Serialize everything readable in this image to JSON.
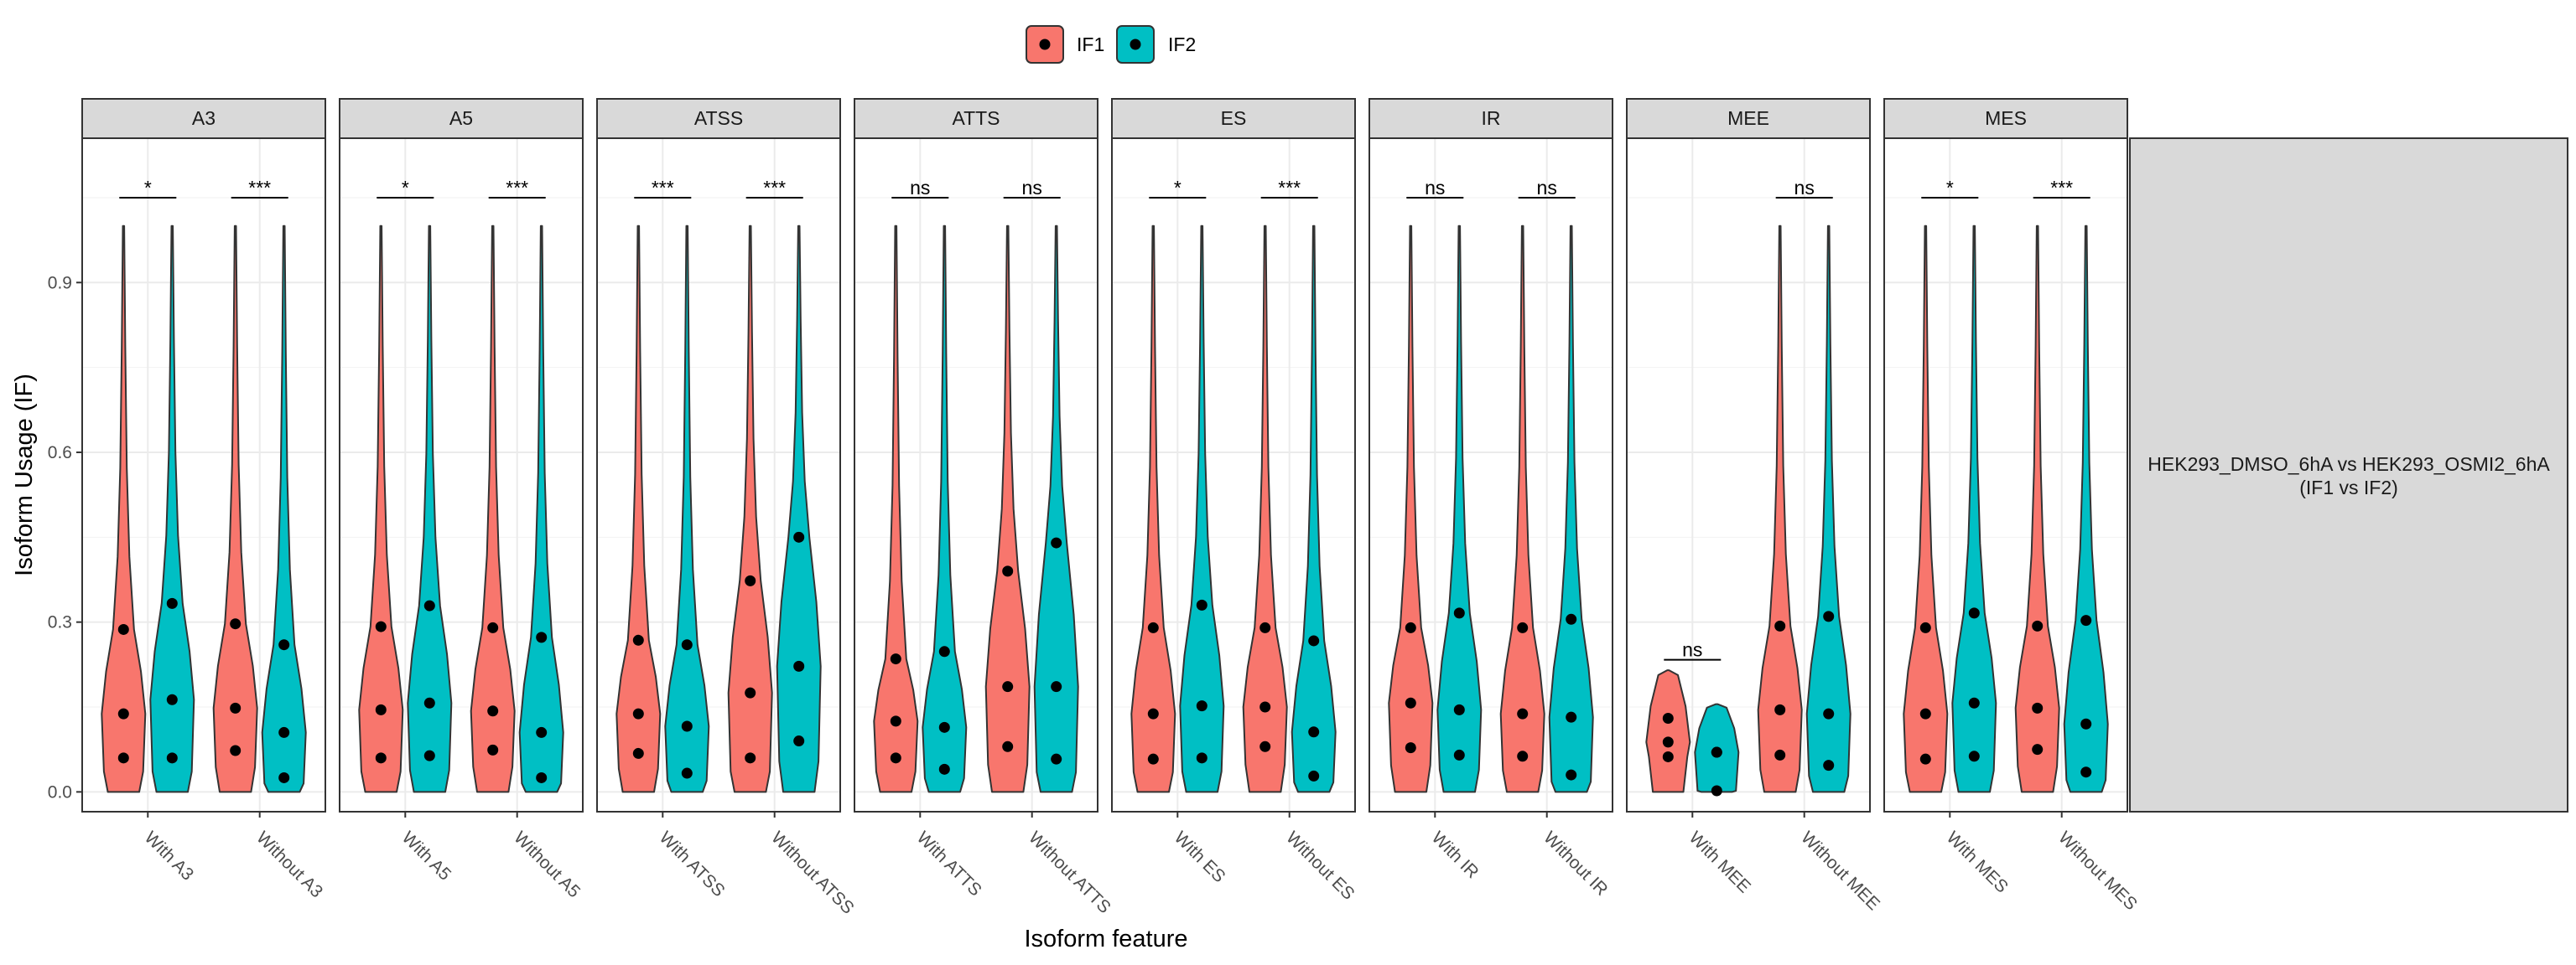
{
  "chart_data": {
    "type": "violin",
    "xlabel": "Isoform feature",
    "ylabel": "Isoform Usage (IF)",
    "ylim": [
      -0.035,
      1.155
    ],
    "yticks": [
      0.0,
      0.3,
      0.6,
      0.9
    ],
    "ytick_labels": [
      "0.0",
      "0.3",
      "0.6",
      "0.9"
    ],
    "grid": true,
    "legend": {
      "position": "top",
      "entries": [
        {
          "label": "IF1",
          "color": "#F8766D"
        },
        {
          "label": "IF2",
          "color": "#00BFC4"
        }
      ]
    },
    "side_strip": {
      "line1": "HEK293_DMSO_6hA vs HEK293_OSMI2_6hA",
      "line2": "(IF1 vs IF2)"
    },
    "facets": [
      {
        "name": "A3",
        "groups": [
          {
            "label": "With A3",
            "sig": "*",
            "if1": {
              "quantiles": [
                0.06,
                0.138,
                0.287
              ],
              "max": 1.0
            },
            "if2": {
              "quantiles": [
                0.06,
                0.163,
                0.333
              ],
              "max": 1.0
            }
          },
          {
            "label": "Without A3",
            "sig": "***",
            "if1": {
              "quantiles": [
                0.073,
                0.148,
                0.297
              ],
              "max": 1.0
            },
            "if2": {
              "quantiles": [
                0.025,
                0.105,
                0.26
              ],
              "max": 1.0
            }
          }
        ]
      },
      {
        "name": "A5",
        "groups": [
          {
            "label": "With A5",
            "sig": "*",
            "if1": {
              "quantiles": [
                0.06,
                0.145,
                0.292
              ],
              "max": 1.0
            },
            "if2": {
              "quantiles": [
                0.064,
                0.157,
                0.329
              ],
              "max": 1.0
            }
          },
          {
            "label": "Without A5",
            "sig": "***",
            "if1": {
              "quantiles": [
                0.074,
                0.143,
                0.29
              ],
              "max": 1.0
            },
            "if2": {
              "quantiles": [
                0.025,
                0.105,
                0.273
              ],
              "max": 1.0
            }
          }
        ]
      },
      {
        "name": "ATSS",
        "groups": [
          {
            "label": "With ATSS",
            "sig": "***",
            "if1": {
              "quantiles": [
                0.068,
                0.138,
                0.268
              ],
              "max": 1.0
            },
            "if2": {
              "quantiles": [
                0.033,
                0.116,
                0.26
              ],
              "max": 1.0
            }
          },
          {
            "label": "Without ATSS",
            "sig": "***",
            "if1": {
              "quantiles": [
                0.06,
                0.175,
                0.373
              ],
              "max": 1.0
            },
            "if2": {
              "quantiles": [
                0.09,
                0.222,
                0.45
              ],
              "max": 1.0
            }
          }
        ]
      },
      {
        "name": "ATTS",
        "groups": [
          {
            "label": "With ATTS",
            "sig": "ns",
            "if1": {
              "quantiles": [
                0.06,
                0.125,
                0.235
              ],
              "max": 1.0
            },
            "if2": {
              "quantiles": [
                0.04,
                0.114,
                0.248
              ],
              "max": 1.0
            }
          },
          {
            "label": "Without ATTS",
            "sig": "ns",
            "if1": {
              "quantiles": [
                0.08,
                0.186,
                0.39
              ],
              "max": 1.0
            },
            "if2": {
              "quantiles": [
                0.058,
                0.186,
                0.44
              ],
              "max": 1.0
            }
          }
        ]
      },
      {
        "name": "ES",
        "groups": [
          {
            "label": "With ES",
            "sig": "*",
            "if1": {
              "quantiles": [
                0.058,
                0.138,
                0.29
              ],
              "max": 1.0
            },
            "if2": {
              "quantiles": [
                0.06,
                0.152,
                0.33
              ],
              "max": 1.0
            }
          },
          {
            "label": "Without ES",
            "sig": "***",
            "if1": {
              "quantiles": [
                0.08,
                0.15,
                0.29
              ],
              "max": 1.0
            },
            "if2": {
              "quantiles": [
                0.028,
                0.106,
                0.267
              ],
              "max": 1.0
            }
          }
        ]
      },
      {
        "name": "IR",
        "groups": [
          {
            "label": "With IR",
            "sig": "ns",
            "if1": {
              "quantiles": [
                0.078,
                0.157,
                0.29
              ],
              "max": 1.0
            },
            "if2": {
              "quantiles": [
                0.065,
                0.145,
                0.316
              ],
              "max": 1.0
            }
          },
          {
            "label": "Without IR",
            "sig": "ns",
            "if1": {
              "quantiles": [
                0.063,
                0.138,
                0.29
              ],
              "max": 1.0
            },
            "if2": {
              "quantiles": [
                0.03,
                0.132,
                0.305
              ],
              "max": 1.0
            }
          }
        ]
      },
      {
        "name": "MEE",
        "groups": [
          {
            "label": "With MEE",
            "sig": "ns",
            "if1": {
              "quantiles": [
                0.062,
                0.088,
                0.13
              ],
              "max": 0.215
            },
            "if2": {
              "quantiles": [
                0.002,
                0.07,
                0.07
              ],
              "max": 0.155
            }
          },
          {
            "label": "Without MEE",
            "sig": "ns",
            "if1": {
              "quantiles": [
                0.065,
                0.145,
                0.293
              ],
              "max": 1.0
            },
            "if2": {
              "quantiles": [
                0.047,
                0.138,
                0.31
              ],
              "max": 1.0
            }
          }
        ]
      },
      {
        "name": "MES",
        "groups": [
          {
            "label": "With MES",
            "sig": "*",
            "if1": {
              "quantiles": [
                0.058,
                0.138,
                0.29
              ],
              "max": 1.0
            },
            "if2": {
              "quantiles": [
                0.063,
                0.157,
                0.316
              ],
              "max": 1.0
            }
          },
          {
            "label": "Without MES",
            "sig": "***",
            "if1": {
              "quantiles": [
                0.075,
                0.148,
                0.293
              ],
              "max": 1.0
            },
            "if2": {
              "quantiles": [
                0.035,
                0.12,
                0.303
              ],
              "max": 1.0
            }
          }
        ]
      }
    ]
  }
}
